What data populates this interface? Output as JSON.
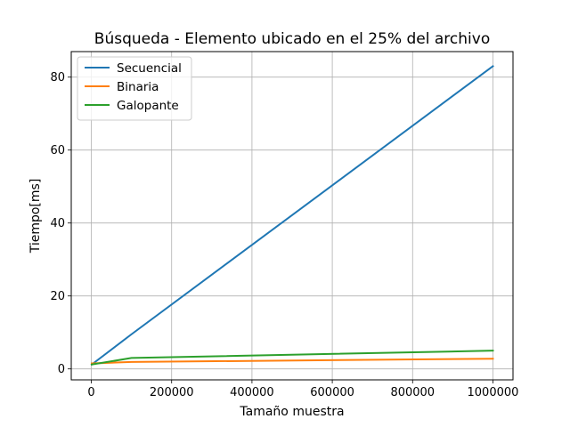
{
  "chart_data": {
    "type": "line",
    "title": "Búsqueda - Elemento ubicado en el 25% del archivo",
    "xlabel": "Tamaño muestra",
    "ylabel": "Tiempo[ms]",
    "xlim": [
      -50000,
      1050000
    ],
    "ylim": [
      -3,
      87
    ],
    "xticks": [
      0,
      200000,
      400000,
      600000,
      800000,
      1000000
    ],
    "xtick_labels": [
      "0",
      "200000",
      "400000",
      "600000",
      "800000",
      "1000000"
    ],
    "yticks": [
      0,
      20,
      40,
      60,
      80
    ],
    "ytick_labels": [
      "0",
      "20",
      "40",
      "60",
      "80"
    ],
    "grid": true,
    "legend_position": "top-left",
    "series": [
      {
        "name": "Secuencial",
        "color": "#1f77b4",
        "x": [
          1000,
          100000,
          1000000
        ],
        "y": [
          1.2,
          9.5,
          83
        ]
      },
      {
        "name": "Binaria",
        "color": "#ff7f0e",
        "x": [
          1000,
          100000,
          1000000
        ],
        "y": [
          1.5,
          1.9,
          2.8
        ]
      },
      {
        "name": "Galopante",
        "color": "#2ca02c",
        "x": [
          1000,
          100000,
          1000000
        ],
        "y": [
          1.2,
          3.0,
          5.0
        ]
      }
    ]
  }
}
